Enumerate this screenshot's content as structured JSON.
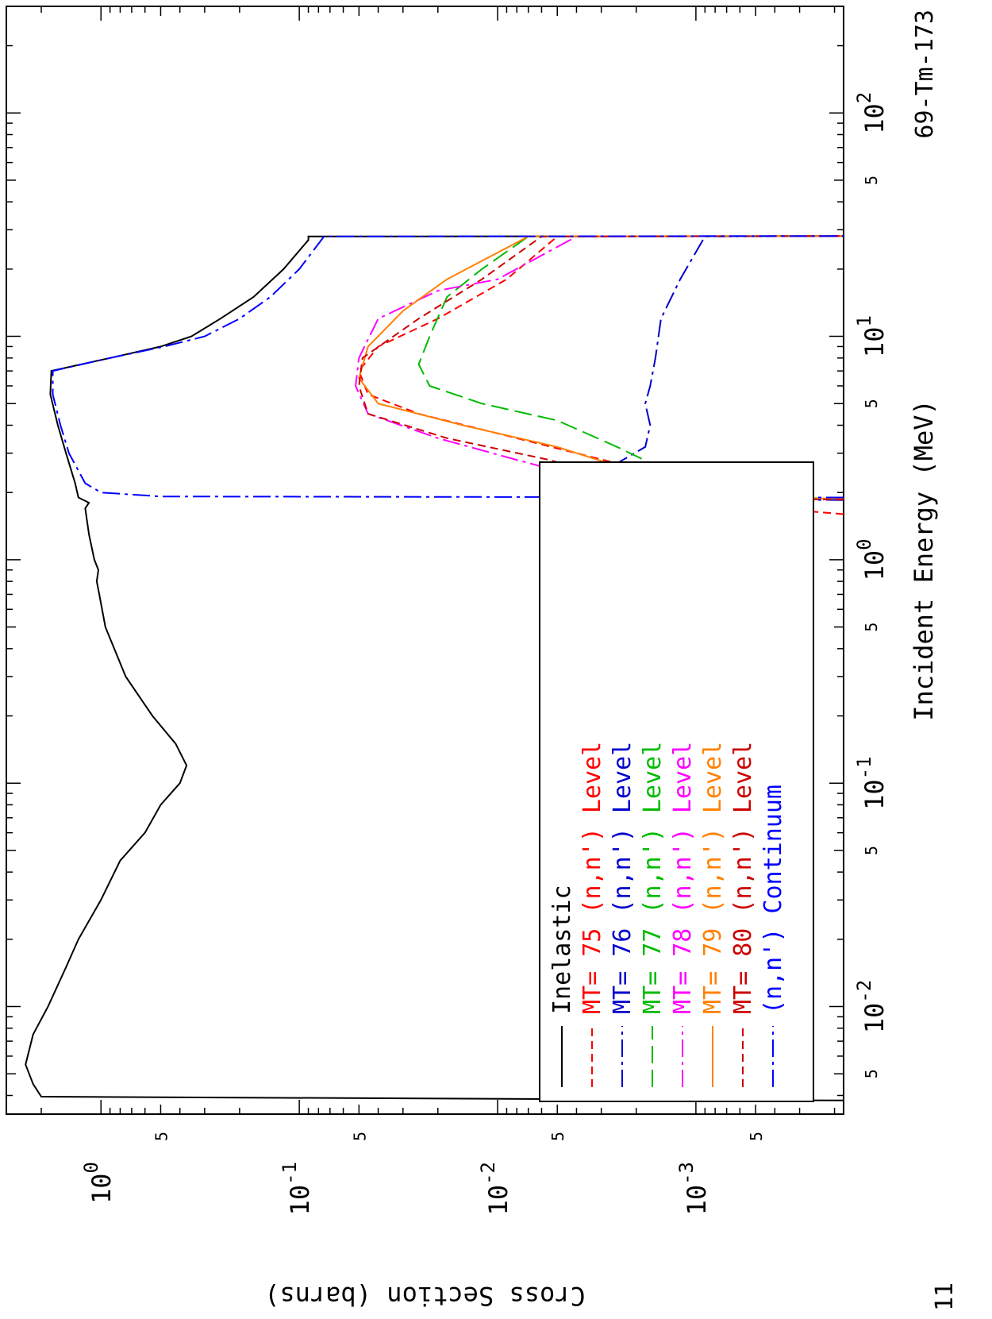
{
  "chart_data": {
    "type": "line",
    "title": "69-Tm-173",
    "xlabel": "Incident Energy (MeV)",
    "ylabel": "Cross Section (barns)",
    "x_scale": "log",
    "y_scale": "log",
    "xlim": [
      0.0033,
      300
    ],
    "ylim": [
      0.00018,
      3.0
    ],
    "grid": false,
    "legend_placement": "lower-left",
    "corner_label": "11",
    "x_major_ticks": [
      {
        "value": 0.01,
        "base": "10",
        "exp": "-2"
      },
      {
        "value": 0.1,
        "base": "10",
        "exp": "-1"
      },
      {
        "value": 1,
        "base": "10",
        "exp": "0"
      },
      {
        "value": 10,
        "base": "10",
        "exp": "1"
      },
      {
        "value": 100,
        "base": "10",
        "exp": "2"
      }
    ],
    "x_minor_labels": [
      {
        "value": 0.005,
        "label": "5"
      },
      {
        "value": 0.05,
        "label": "5"
      },
      {
        "value": 0.5,
        "label": "5"
      },
      {
        "value": 5,
        "label": "5"
      },
      {
        "value": 50,
        "label": "5"
      }
    ],
    "y_major_ticks": [
      {
        "value": 1,
        "base": "10",
        "exp": "0"
      },
      {
        "value": 0.1,
        "base": "10",
        "exp": "-1"
      },
      {
        "value": 0.01,
        "base": "10",
        "exp": "-2"
      },
      {
        "value": 0.001,
        "base": "10",
        "exp": "-3"
      }
    ],
    "y_minor_labels": [
      {
        "value": 0.5,
        "label": "5"
      },
      {
        "value": 0.05,
        "label": "5"
      },
      {
        "value": 0.005,
        "label": "5"
      },
      {
        "value": 0.0005,
        "label": "5"
      }
    ],
    "series": [
      {
        "name": "Inelastic",
        "label_parts": [
          "Inelastic"
        ],
        "color": "#000000",
        "dash": "solid",
        "points": [
          [
            0.0038,
            0.00018
          ],
          [
            0.00395,
            2.0
          ],
          [
            0.0045,
            2.2
          ],
          [
            0.0055,
            2.4
          ],
          [
            0.0075,
            2.2
          ],
          [
            0.01,
            1.85
          ],
          [
            0.015,
            1.5
          ],
          [
            0.02,
            1.3
          ],
          [
            0.03,
            1.0
          ],
          [
            0.045,
            0.8
          ],
          [
            0.06,
            0.6
          ],
          [
            0.08,
            0.5
          ],
          [
            0.1,
            0.4
          ],
          [
            0.12,
            0.37
          ],
          [
            0.15,
            0.42
          ],
          [
            0.2,
            0.55
          ],
          [
            0.3,
            0.75
          ],
          [
            0.5,
            0.95
          ],
          [
            0.7,
            1.02
          ],
          [
            0.8,
            1.05
          ],
          [
            0.9,
            1.03
          ],
          [
            1.0,
            1.08
          ],
          [
            1.3,
            1.15
          ],
          [
            1.7,
            1.2
          ],
          [
            1.8,
            1.15
          ],
          [
            1.9,
            1.3
          ],
          [
            2.2,
            1.35
          ],
          [
            3.0,
            1.5
          ],
          [
            4.0,
            1.65
          ],
          [
            5.5,
            1.8
          ],
          [
            7.0,
            1.78
          ],
          [
            8.0,
            0.9
          ],
          [
            9.0,
            0.5
          ],
          [
            10,
            0.35
          ],
          [
            12,
            0.25
          ],
          [
            15,
            0.17
          ],
          [
            20,
            0.12
          ],
          [
            27,
            0.09
          ],
          [
            28,
            0.09
          ],
          [
            28.1,
            0.00018
          ]
        ]
      },
      {
        "name": "MT= 75 (n,n') Level",
        "label_parts": [
          "MT=",
          "75",
          "(n,n')",
          "Level"
        ],
        "color": "#ff0000",
        "dash": "short",
        "points": [
          [
            1.6,
            0.00018
          ],
          [
            1.75,
            0.0006
          ],
          [
            1.9,
            0.0009
          ],
          [
            2.2,
            0.0012
          ],
          [
            2.7,
            0.0025
          ],
          [
            3.5,
            0.008
          ],
          [
            4.5,
            0.025
          ],
          [
            5.5,
            0.045
          ],
          [
            7,
            0.05
          ],
          [
            9,
            0.04
          ],
          [
            12,
            0.02
          ],
          [
            18,
            0.009
          ],
          [
            28,
            0.005
          ],
          [
            28.1,
            0.00018
          ]
        ]
      },
      {
        "name": "MT= 76 (n,n') Level",
        "label_parts": [
          "MT=",
          "76",
          "(n,n')",
          "Level"
        ],
        "color": "#0000cc",
        "dash": "dashdot",
        "points": [
          [
            1.85,
            0.00018
          ],
          [
            1.88,
            0.0025
          ],
          [
            1.9,
            0.004
          ],
          [
            2.0,
            0.0045
          ],
          [
            2.3,
            0.0038
          ],
          [
            2.7,
            0.0025
          ],
          [
            3.2,
            0.0018
          ],
          [
            4.0,
            0.0017
          ],
          [
            5.0,
            0.0018
          ],
          [
            6.0,
            0.0017
          ],
          [
            8.0,
            0.0016
          ],
          [
            12,
            0.0015
          ],
          [
            18,
            0.0012
          ],
          [
            28,
            0.0009
          ],
          [
            28.1,
            0.00018
          ]
        ]
      },
      {
        "name": "MT= 77 (n,n') Level",
        "label_parts": [
          "MT=",
          "77",
          "(n,n')",
          "Level"
        ],
        "color": "#00bb00",
        "dash": "long",
        "points": [
          [
            1.88,
            0.00018
          ],
          [
            1.92,
            0.0009
          ],
          [
            2.0,
            0.0011
          ],
          [
            2.5,
            0.0014
          ],
          [
            3.2,
            0.0025
          ],
          [
            4.2,
            0.005
          ],
          [
            5.0,
            0.012
          ],
          [
            6.0,
            0.022
          ],
          [
            7.5,
            0.025
          ],
          [
            10,
            0.022
          ],
          [
            15,
            0.018
          ],
          [
            20,
            0.012
          ],
          [
            28,
            0.007
          ],
          [
            28.1,
            0.00018
          ]
        ]
      },
      {
        "name": "MT= 78 (n,n') Level",
        "label_parts": [
          "MT=",
          "78",
          "(n,n')",
          "Level"
        ],
        "color": "#ff00ff",
        "dash": "dashdot",
        "points": [
          [
            1.88,
            0.00018
          ],
          [
            1.9,
            0.002
          ],
          [
            2.0,
            0.0025
          ],
          [
            2.3,
            0.0035
          ],
          [
            2.8,
            0.008
          ],
          [
            3.5,
            0.02
          ],
          [
            4.5,
            0.045
          ],
          [
            6,
            0.052
          ],
          [
            8,
            0.05
          ],
          [
            12,
            0.04
          ],
          [
            16,
            0.02
          ],
          [
            18,
            0.01
          ],
          [
            28,
            0.004
          ],
          [
            28.1,
            0.00018
          ]
        ]
      },
      {
        "name": "MT= 79 (n,n') Level",
        "label_parts": [
          "MT=",
          "79",
          "(n,n')",
          "Level"
        ],
        "color": "#ff8000",
        "dash": "solid",
        "points": [
          [
            1.88,
            0.00018
          ],
          [
            1.9,
            0.0011
          ],
          [
            2.0,
            0.0012
          ],
          [
            2.5,
            0.0021
          ],
          [
            3.2,
            0.005
          ],
          [
            4.0,
            0.015
          ],
          [
            5.0,
            0.04
          ],
          [
            6.5,
            0.05
          ],
          [
            9,
            0.045
          ],
          [
            13,
            0.03
          ],
          [
            18,
            0.018
          ],
          [
            28,
            0.007
          ],
          [
            28.1,
            0.00018
          ]
        ]
      },
      {
        "name": "MT= 80 (n,n') Level",
        "label_parts": [
          "MT=",
          "80",
          "(n,n')",
          "Level"
        ],
        "color": "#cc0000",
        "dash": "short",
        "points": [
          [
            1.86,
            0.00018
          ],
          [
            1.88,
            0.0018
          ],
          [
            1.95,
            0.0019
          ],
          [
            2.3,
            0.0025
          ],
          [
            2.8,
            0.0055
          ],
          [
            3.5,
            0.018
          ],
          [
            4.5,
            0.045
          ],
          [
            6,
            0.05
          ],
          [
            8,
            0.048
          ],
          [
            12,
            0.025
          ],
          [
            18,
            0.012
          ],
          [
            28,
            0.006
          ],
          [
            28.1,
            0.00018
          ]
        ]
      },
      {
        "name": "(n,n') Continuum",
        "label_parts": [
          "(n,n')",
          "Continuum"
        ],
        "color": "#0000ff",
        "dash": "dashdot",
        "points": [
          [
            1.9,
            0.00018
          ],
          [
            1.92,
            0.5
          ],
          [
            2.0,
            1.0
          ],
          [
            2.2,
            1.2
          ],
          [
            3.0,
            1.45
          ],
          [
            4.0,
            1.6
          ],
          [
            5.5,
            1.75
          ],
          [
            7.0,
            1.75
          ],
          [
            8.0,
            0.9
          ],
          [
            9.0,
            0.48
          ],
          [
            10,
            0.3
          ],
          [
            12,
            0.2
          ],
          [
            15,
            0.14
          ],
          [
            20,
            0.1
          ],
          [
            28,
            0.075
          ],
          [
            28.1,
            0.00018
          ]
        ]
      }
    ]
  }
}
